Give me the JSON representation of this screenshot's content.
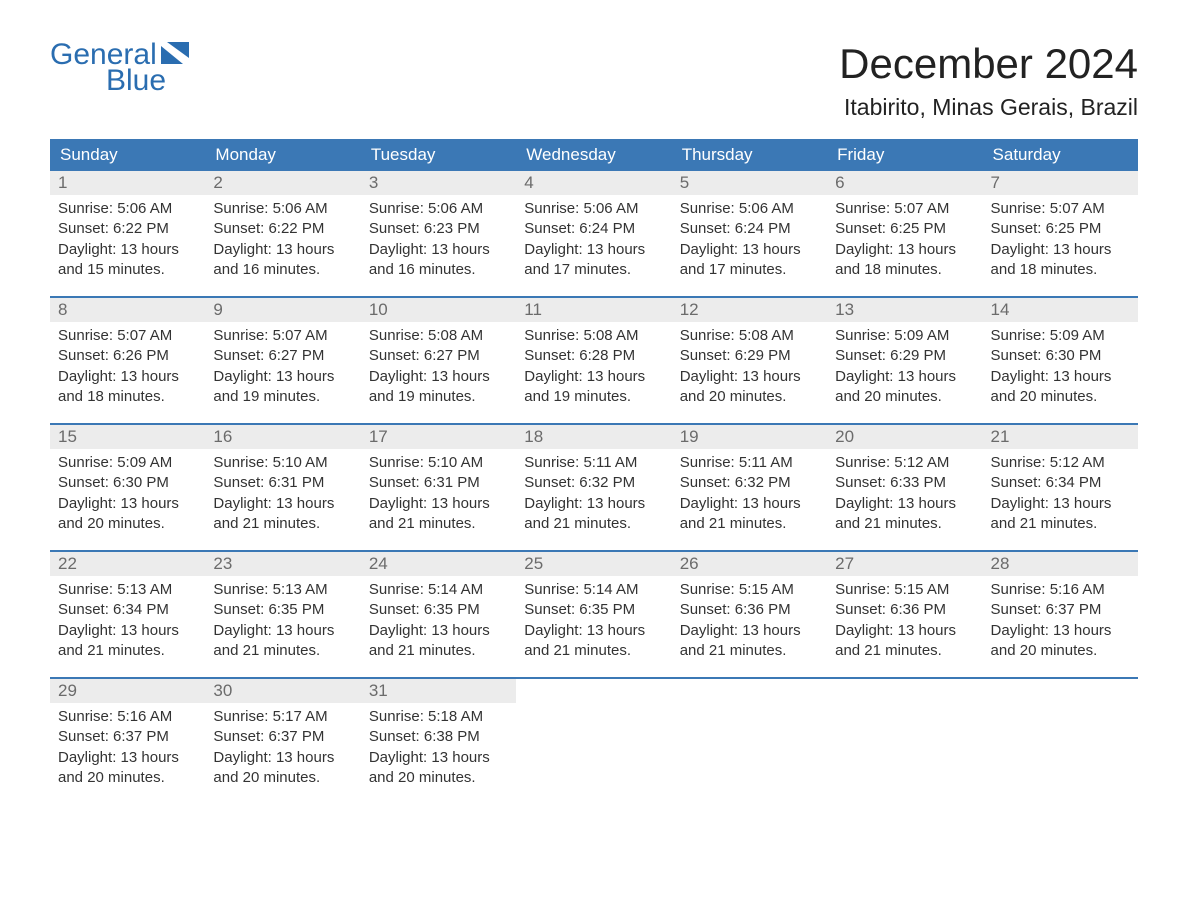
{
  "logo": {
    "line1": "General",
    "line2": "Blue",
    "brand_color": "#2a6db0"
  },
  "title": "December 2024",
  "location": "Itabirito, Minas Gerais, Brazil",
  "colors": {
    "header_bg": "#3b78b5",
    "header_text": "#ffffff",
    "daynum_bg": "#ececec",
    "daynum_text": "#6b6b6b",
    "row_border": "#3b78b5",
    "body_text": "#333333",
    "page_bg": "#ffffff"
  },
  "typography": {
    "title_fontsize": 42,
    "location_fontsize": 23,
    "header_fontsize": 17,
    "daynum_fontsize": 17,
    "cell_fontsize": 15
  },
  "weekdays": [
    "Sunday",
    "Monday",
    "Tuesday",
    "Wednesday",
    "Thursday",
    "Friday",
    "Saturday"
  ],
  "weeks": [
    [
      {
        "n": "1",
        "sr": "Sunrise: 5:06 AM",
        "ss": "Sunset: 6:22 PM",
        "d1": "Daylight: 13 hours",
        "d2": "and 15 minutes."
      },
      {
        "n": "2",
        "sr": "Sunrise: 5:06 AM",
        "ss": "Sunset: 6:22 PM",
        "d1": "Daylight: 13 hours",
        "d2": "and 16 minutes."
      },
      {
        "n": "3",
        "sr": "Sunrise: 5:06 AM",
        "ss": "Sunset: 6:23 PM",
        "d1": "Daylight: 13 hours",
        "d2": "and 16 minutes."
      },
      {
        "n": "4",
        "sr": "Sunrise: 5:06 AM",
        "ss": "Sunset: 6:24 PM",
        "d1": "Daylight: 13 hours",
        "d2": "and 17 minutes."
      },
      {
        "n": "5",
        "sr": "Sunrise: 5:06 AM",
        "ss": "Sunset: 6:24 PM",
        "d1": "Daylight: 13 hours",
        "d2": "and 17 minutes."
      },
      {
        "n": "6",
        "sr": "Sunrise: 5:07 AM",
        "ss": "Sunset: 6:25 PM",
        "d1": "Daylight: 13 hours",
        "d2": "and 18 minutes."
      },
      {
        "n": "7",
        "sr": "Sunrise: 5:07 AM",
        "ss": "Sunset: 6:25 PM",
        "d1": "Daylight: 13 hours",
        "d2": "and 18 minutes."
      }
    ],
    [
      {
        "n": "8",
        "sr": "Sunrise: 5:07 AM",
        "ss": "Sunset: 6:26 PM",
        "d1": "Daylight: 13 hours",
        "d2": "and 18 minutes."
      },
      {
        "n": "9",
        "sr": "Sunrise: 5:07 AM",
        "ss": "Sunset: 6:27 PM",
        "d1": "Daylight: 13 hours",
        "d2": "and 19 minutes."
      },
      {
        "n": "10",
        "sr": "Sunrise: 5:08 AM",
        "ss": "Sunset: 6:27 PM",
        "d1": "Daylight: 13 hours",
        "d2": "and 19 minutes."
      },
      {
        "n": "11",
        "sr": "Sunrise: 5:08 AM",
        "ss": "Sunset: 6:28 PM",
        "d1": "Daylight: 13 hours",
        "d2": "and 19 minutes."
      },
      {
        "n": "12",
        "sr": "Sunrise: 5:08 AM",
        "ss": "Sunset: 6:29 PM",
        "d1": "Daylight: 13 hours",
        "d2": "and 20 minutes."
      },
      {
        "n": "13",
        "sr": "Sunrise: 5:09 AM",
        "ss": "Sunset: 6:29 PM",
        "d1": "Daylight: 13 hours",
        "d2": "and 20 minutes."
      },
      {
        "n": "14",
        "sr": "Sunrise: 5:09 AM",
        "ss": "Sunset: 6:30 PM",
        "d1": "Daylight: 13 hours",
        "d2": "and 20 minutes."
      }
    ],
    [
      {
        "n": "15",
        "sr": "Sunrise: 5:09 AM",
        "ss": "Sunset: 6:30 PM",
        "d1": "Daylight: 13 hours",
        "d2": "and 20 minutes."
      },
      {
        "n": "16",
        "sr": "Sunrise: 5:10 AM",
        "ss": "Sunset: 6:31 PM",
        "d1": "Daylight: 13 hours",
        "d2": "and 21 minutes."
      },
      {
        "n": "17",
        "sr": "Sunrise: 5:10 AM",
        "ss": "Sunset: 6:31 PM",
        "d1": "Daylight: 13 hours",
        "d2": "and 21 minutes."
      },
      {
        "n": "18",
        "sr": "Sunrise: 5:11 AM",
        "ss": "Sunset: 6:32 PM",
        "d1": "Daylight: 13 hours",
        "d2": "and 21 minutes."
      },
      {
        "n": "19",
        "sr": "Sunrise: 5:11 AM",
        "ss": "Sunset: 6:32 PM",
        "d1": "Daylight: 13 hours",
        "d2": "and 21 minutes."
      },
      {
        "n": "20",
        "sr": "Sunrise: 5:12 AM",
        "ss": "Sunset: 6:33 PM",
        "d1": "Daylight: 13 hours",
        "d2": "and 21 minutes."
      },
      {
        "n": "21",
        "sr": "Sunrise: 5:12 AM",
        "ss": "Sunset: 6:34 PM",
        "d1": "Daylight: 13 hours",
        "d2": "and 21 minutes."
      }
    ],
    [
      {
        "n": "22",
        "sr": "Sunrise: 5:13 AM",
        "ss": "Sunset: 6:34 PM",
        "d1": "Daylight: 13 hours",
        "d2": "and 21 minutes."
      },
      {
        "n": "23",
        "sr": "Sunrise: 5:13 AM",
        "ss": "Sunset: 6:35 PM",
        "d1": "Daylight: 13 hours",
        "d2": "and 21 minutes."
      },
      {
        "n": "24",
        "sr": "Sunrise: 5:14 AM",
        "ss": "Sunset: 6:35 PM",
        "d1": "Daylight: 13 hours",
        "d2": "and 21 minutes."
      },
      {
        "n": "25",
        "sr": "Sunrise: 5:14 AM",
        "ss": "Sunset: 6:35 PM",
        "d1": "Daylight: 13 hours",
        "d2": "and 21 minutes."
      },
      {
        "n": "26",
        "sr": "Sunrise: 5:15 AM",
        "ss": "Sunset: 6:36 PM",
        "d1": "Daylight: 13 hours",
        "d2": "and 21 minutes."
      },
      {
        "n": "27",
        "sr": "Sunrise: 5:15 AM",
        "ss": "Sunset: 6:36 PM",
        "d1": "Daylight: 13 hours",
        "d2": "and 21 minutes."
      },
      {
        "n": "28",
        "sr": "Sunrise: 5:16 AM",
        "ss": "Sunset: 6:37 PM",
        "d1": "Daylight: 13 hours",
        "d2": "and 20 minutes."
      }
    ],
    [
      {
        "n": "29",
        "sr": "Sunrise: 5:16 AM",
        "ss": "Sunset: 6:37 PM",
        "d1": "Daylight: 13 hours",
        "d2": "and 20 minutes."
      },
      {
        "n": "30",
        "sr": "Sunrise: 5:17 AM",
        "ss": "Sunset: 6:37 PM",
        "d1": "Daylight: 13 hours",
        "d2": "and 20 minutes."
      },
      {
        "n": "31",
        "sr": "Sunrise: 5:18 AM",
        "ss": "Sunset: 6:38 PM",
        "d1": "Daylight: 13 hours",
        "d2": "and 20 minutes."
      },
      null,
      null,
      null,
      null
    ]
  ]
}
